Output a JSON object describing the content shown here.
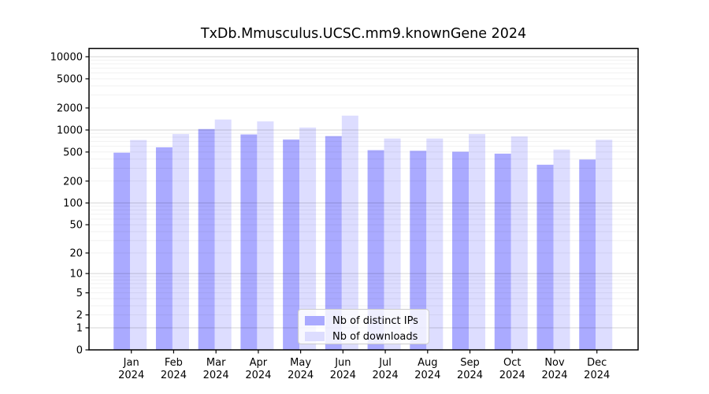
{
  "chart_data": {
    "type": "bar",
    "title": "TxDb.Mmusculus.UCSC.mm9.knownGene 2024",
    "categories": [
      "Jan",
      "Feb",
      "Mar",
      "Apr",
      "May",
      "Jun",
      "Jul",
      "Aug",
      "Sep",
      "Oct",
      "Nov",
      "Dec"
    ],
    "category_year": "2024",
    "series": [
      {
        "name": "Nb of distinct IPs",
        "color": "#aaaaff",
        "values": [
          490,
          580,
          1030,
          870,
          740,
          825,
          530,
          520,
          505,
          475,
          335,
          395
        ]
      },
      {
        "name": "Nb of downloads",
        "color": "#ddddff",
        "values": [
          730,
          880,
          1390,
          1310,
          1080,
          1570,
          765,
          765,
          880,
          815,
          540,
          735
        ]
      }
    ],
    "xlabel": "",
    "ylabel": "",
    "yscale": "log10(1+y)",
    "yticks": [
      0,
      1,
      2,
      5,
      10,
      20,
      50,
      100,
      200,
      500,
      1000,
      2000,
      5000,
      10000
    ],
    "ylim": [
      0,
      13000
    ],
    "grid": "horizontal, minor and major, drawn over bars",
    "legend_position": "inside lower-center"
  }
}
